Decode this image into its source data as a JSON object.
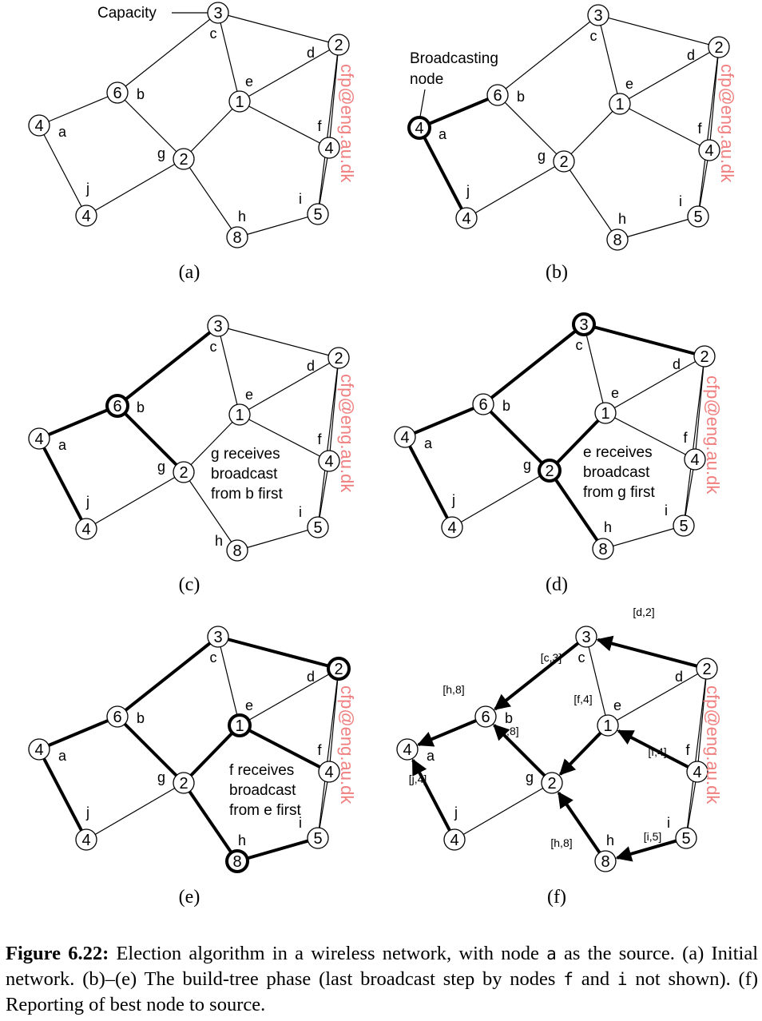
{
  "colors": {
    "line": "#000000",
    "watermark": "#f08080"
  },
  "nodes": {
    "c": {
      "cap": "3",
      "label": "c"
    },
    "d": {
      "cap": "2",
      "label": "d"
    },
    "b": {
      "cap": "6",
      "label": "b"
    },
    "e": {
      "cap": "1",
      "label": "e"
    },
    "a": {
      "cap": "4",
      "label": "a"
    },
    "f": {
      "cap": "4",
      "label": "f"
    },
    "g": {
      "cap": "2",
      "label": "g"
    },
    "j": {
      "cap": "4",
      "label": "j"
    },
    "i": {
      "cap": "5",
      "label": "i"
    },
    "h": {
      "cap": "8",
      "label": "h"
    }
  },
  "panels": [
    {
      "id": "a",
      "label": "(a)",
      "bold_edges": [],
      "bold_nodes": [],
      "arrows": [],
      "annotations": [
        "Capacity"
      ],
      "messages": []
    },
    {
      "id": "b",
      "label": "(b)",
      "bold_edges": [
        "a-b",
        "a-j"
      ],
      "bold_nodes": [
        "a"
      ],
      "arrows": [],
      "annotations": [
        "Broadcasting",
        "node"
      ],
      "messages": []
    },
    {
      "id": "c",
      "label": "(c)",
      "bold_edges": [
        "a-b",
        "a-j",
        "b-c",
        "b-g"
      ],
      "bold_nodes": [
        "b"
      ],
      "arrows": [],
      "annotations": [
        "g receives",
        "broadcast",
        "from b first"
      ],
      "messages": []
    },
    {
      "id": "d",
      "label": "(d)",
      "bold_edges": [
        "a-b",
        "a-j",
        "b-c",
        "b-g",
        "c-d",
        "g-e",
        "g-h"
      ],
      "bold_nodes": [
        "c",
        "g"
      ],
      "arrows": [],
      "annotations": [
        "e receives",
        "broadcast",
        "from g first"
      ],
      "messages": []
    },
    {
      "id": "e",
      "label": "(e)",
      "bold_edges": [
        "a-b",
        "a-j",
        "b-c",
        "b-g",
        "c-d",
        "g-e",
        "g-h",
        "e-f",
        "h-i"
      ],
      "bold_nodes": [
        "d",
        "e",
        "h"
      ],
      "arrows": [],
      "annotations": [
        "f receives",
        "broadcast",
        "from e first"
      ],
      "messages": []
    },
    {
      "id": "f",
      "label": "(f)",
      "bold_edges": [],
      "bold_nodes": [],
      "arrows": [
        "b-a",
        "j-a",
        "c-b",
        "g-b",
        "d-c",
        "e-g",
        "h-g",
        "f-e",
        "i-h"
      ],
      "annotations": [],
      "messages": [
        "[c,3]",
        "[d,2]",
        "[h,8]",
        "[f,4]",
        "[h,8]",
        "[f,4]",
        "[j,4]",
        "[i,5]",
        "[h,8]"
      ]
    }
  ],
  "watermark": "cfp@eng.au.dk",
  "caption": {
    "label": "Figure 6.22:",
    "t1": " Election algorithm in a wireless network, with node ",
    "m1": "a",
    "t2": " as the source. (a) Initial network. (b)–(e) The build-tree phase (last broadcast step by nodes ",
    "m2": "f",
    "t3": " and ",
    "m3": "i",
    "t4": " not shown). (f) Reporting of best node to source."
  }
}
